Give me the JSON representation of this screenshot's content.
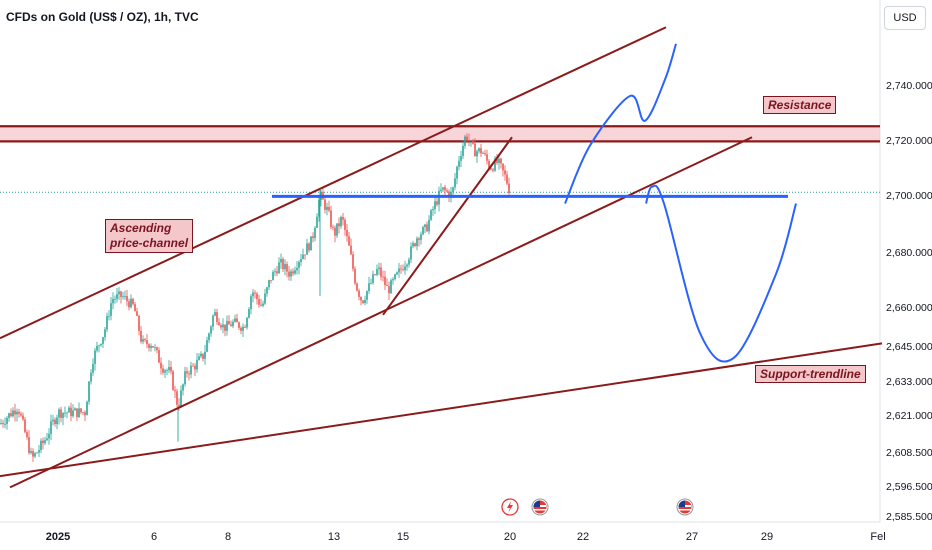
{
  "header": {
    "title": "CFDs on Gold (US$ / OZ), 1h, TVC",
    "currency": "USD"
  },
  "chart_data": {
    "type": "candlestick",
    "title": "CFDs on Gold (US$ / OZ), 1h, TVC",
    "y_ticks": [
      2740.0,
      2720.0,
      2700.0,
      2680.0,
      2660.0,
      2645.0,
      2633.0,
      2621.0,
      2608.5,
      2596.5,
      2585.5
    ],
    "y_tick_labels": [
      "2,740.000",
      "2,720.000",
      "2,700.000",
      "2,680.000",
      "2,660.000",
      "2,645.000",
      "2,633.000",
      "2,621.000",
      "2,608.500",
      "2,596.500",
      "2,585.500"
    ],
    "x_tick_labels": [
      "2025",
      "6",
      "8",
      "13",
      "15",
      "20",
      "22",
      "27",
      "29",
      "Fel"
    ],
    "price_path": [
      [
        0,
        2618
      ],
      [
        18,
        2624
      ],
      [
        32,
        2606
      ],
      [
        44,
        2612
      ],
      [
        58,
        2622
      ],
      [
        72,
        2622
      ],
      [
        85,
        2622
      ],
      [
        92,
        2640
      ],
      [
        104,
        2650
      ],
      [
        112,
        2663
      ],
      [
        122,
        2664
      ],
      [
        134,
        2660
      ],
      [
        142,
        2646
      ],
      [
        152,
        2646
      ],
      [
        162,
        2638
      ],
      [
        170,
        2636
      ],
      [
        178,
        2624
      ],
      [
        186,
        2636
      ],
      [
        194,
        2638
      ],
      [
        204,
        2642
      ],
      [
        214,
        2658
      ],
      [
        224,
        2652
      ],
      [
        234,
        2654
      ],
      [
        244,
        2652
      ],
      [
        252,
        2666
      ],
      [
        262,
        2660
      ],
      [
        270,
        2670
      ],
      [
        280,
        2676
      ],
      [
        290,
        2672
      ],
      [
        300,
        2678
      ],
      [
        312,
        2684
      ],
      [
        320,
        2700
      ],
      [
        328,
        2694
      ],
      [
        334,
        2686
      ],
      [
        342,
        2692
      ],
      [
        350,
        2680
      ],
      [
        356,
        2668
      ],
      [
        362,
        2662
      ],
      [
        370,
        2668
      ],
      [
        378,
        2674
      ],
      [
        388,
        2666
      ],
      [
        398,
        2672
      ],
      [
        408,
        2678
      ],
      [
        418,
        2686
      ],
      [
        426,
        2688
      ],
      [
        434,
        2696
      ],
      [
        442,
        2702
      ],
      [
        452,
        2700
      ],
      [
        458,
        2712
      ],
      [
        466,
        2722
      ],
      [
        474,
        2716
      ],
      [
        482,
        2716
      ],
      [
        490,
        2710
      ],
      [
        498,
        2712
      ],
      [
        506,
        2706
      ],
      [
        510,
        2701
      ]
    ],
    "last_price": 2701,
    "annotations": [
      "Ascending\nprice-channel",
      "Resistance",
      "Support-trendline"
    ],
    "resistance_zone": [
      2719.5,
      2725
    ],
    "support_level": 2699.5,
    "channel_upper": [
      [
        0,
        2648
      ],
      [
        666,
        2761
      ]
    ],
    "channel_lower": [
      [
        10,
        2596
      ],
      [
        752,
        2721
      ]
    ],
    "inner_trendline": [
      [
        383,
        2657
      ],
      [
        512,
        2721
      ]
    ],
    "support_trendline": [
      [
        0,
        2600
      ],
      [
        882,
        2646
      ]
    ],
    "projections": [
      [
        [
          565,
          2697
        ],
        [
          590,
          2718
        ],
        [
          630,
          2736
        ],
        [
          645,
          2727
        ],
        [
          665,
          2742
        ],
        [
          676,
          2755
        ]
      ],
      [
        [
          646,
          2697
        ],
        [
          652,
          2703
        ],
        [
          664,
          2697
        ],
        [
          700,
          2650
        ],
        [
          734,
          2641
        ],
        [
          776,
          2672
        ],
        [
          796,
          2697
        ]
      ]
    ]
  },
  "annotations": {
    "channel": "Ascending\nprice-channel",
    "resistance": "Resistance",
    "support": "Support-trendline"
  },
  "colors": {
    "up": "#26a69a",
    "down": "#ef5350",
    "lines": "#8b1a1a",
    "projection": "#2962ff",
    "resistance_fill": "#f4c7cb"
  },
  "icons": [
    "lightning-icon",
    "us-flag-icon",
    "us-flag-icon"
  ]
}
